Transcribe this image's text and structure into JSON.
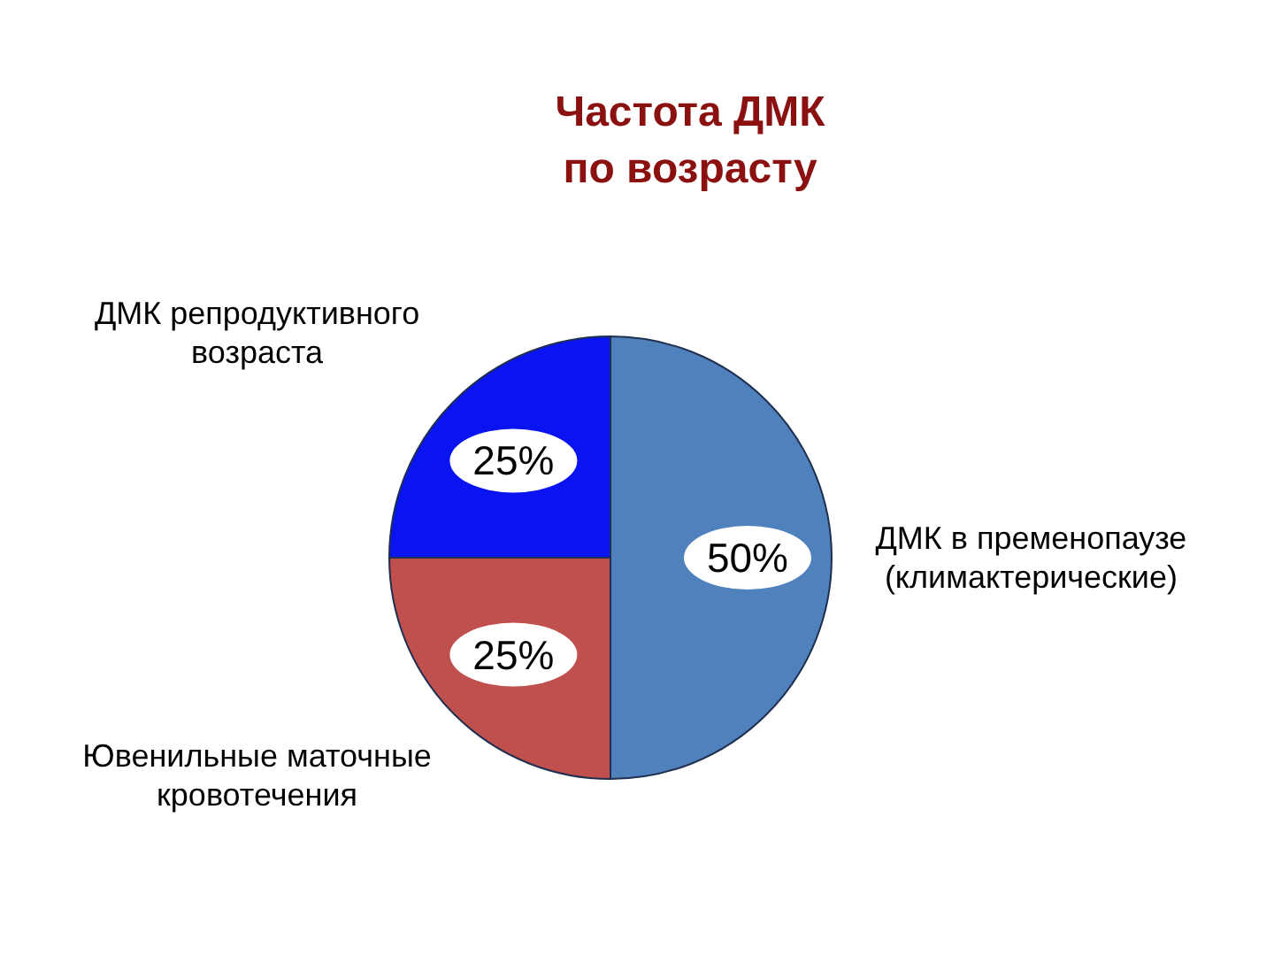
{
  "chart_data": {
    "type": "pie",
    "title": "Частота ДМК по возрасту",
    "categories": [
      "ДМК в пременопаузе (климактерические)",
      "Ювенильные маточные кровотечения",
      "ДМК репродуктивного возраста"
    ],
    "values": [
      50,
      25,
      25
    ],
    "colors": [
      "#4f81bd",
      "#c0504d",
      "#0a14f0"
    ],
    "value_labels": [
      "50%",
      "25%",
      "25%"
    ]
  }
}
